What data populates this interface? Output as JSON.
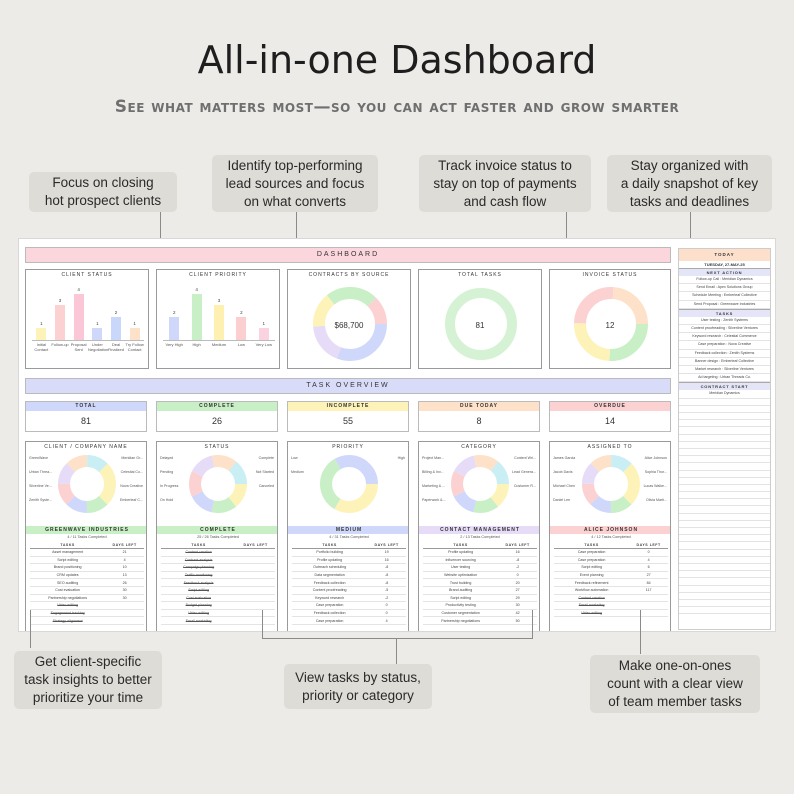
{
  "header": {
    "title": "All-in-one Dashboard",
    "subtitle": "See what matters most—so you can act faster and grow smarter"
  },
  "callouts": {
    "top1": "Focus on closing\nhot prospect clients",
    "top2": "Identify top-performing\nlead sources and focus\non what converts",
    "top3": "Track invoice status to\nstay on top of payments\nand cash flow",
    "top4": "Stay organized with\na daily snapshot of key\ntasks and deadlines",
    "bottom1": "Get client-specific\ntask insights to better\nprioritize your time",
    "bottom2": "View tasks by status,\npriority or category",
    "bottom3": "Make one-on-ones\ncount with a clear view\nof team member tasks"
  },
  "dashboard": {
    "banner": "DASHBOARD",
    "task_overview_banner": "TASK OVERVIEW",
    "client_status": {
      "title": "CLIENT STATUS",
      "bars": [
        {
          "label": "Initial Contact",
          "value": 1,
          "color": "#fdf3b9"
        },
        {
          "label": "Follow-up",
          "value": 3,
          "color": "#fbd1d1"
        },
        {
          "label": "Proposal Sent",
          "value": 4,
          "color": "#fbc6d6"
        },
        {
          "label": "Under Negotiation",
          "value": 1,
          "color": "#cfd8fa"
        },
        {
          "label": "Deal Finalized",
          "value": 2,
          "color": "#c9d7fb"
        },
        {
          "label": "Try Follow Contact",
          "value": 1,
          "color": "#fde1c8"
        }
      ]
    },
    "client_priority": {
      "title": "CLIENT PRIORITY",
      "bars": [
        {
          "label": "Very High",
          "value": 2,
          "color": "#cfd8fa"
        },
        {
          "label": "High",
          "value": 4,
          "color": "#c8efc5"
        },
        {
          "label": "Medium",
          "value": 3,
          "color": "#fdf0b0"
        },
        {
          "label": "Low",
          "value": 2,
          "color": "#fbcfcf"
        },
        {
          "label": "Very Low",
          "value": 1,
          "color": "#fbd3e0"
        }
      ]
    },
    "contracts": {
      "title": "CONTRACTS BY SOURCE",
      "center": "$68,700"
    },
    "total_tasks": {
      "title": "TOTAL TASKS",
      "center": "81"
    },
    "invoice": {
      "title": "INVOICE STATUS",
      "center": "12"
    },
    "kpis": [
      {
        "label": "TOTAL",
        "value": "81",
        "color": "#cfd8fa"
      },
      {
        "label": "COMPLETE",
        "value": "26",
        "color": "#c8efc5"
      },
      {
        "label": "INCOMPLETE",
        "value": "55",
        "color": "#fdf3b9"
      },
      {
        "label": "DUE TODAY",
        "value": "8",
        "color": "#fde1c8"
      },
      {
        "label": "OVERDUE",
        "value": "14",
        "color": "#fbd1d1"
      }
    ],
    "breakdowns": [
      {
        "title": "CLIENT / COMPANY NAME",
        "labels_left": [
          "GreenWave",
          "Urban Threa...",
          "Silverline Ve...",
          "Zenith Syste..."
        ],
        "labels_right": [
          "Meridian Gr...",
          "Celestial Co...",
          "Nova Creative",
          "Emberleaf C..."
        ],
        "selection": "GREENWAVE INDUSTRIES",
        "sel_color": "#c8efc5",
        "sub": "4 / 11 Tasks Completed",
        "col1": "TASKS",
        "col2": "DAYS LEFT",
        "rows": [
          {
            "t": "Asset management",
            "d": "21",
            "done": false
          },
          {
            "t": "Script editing",
            "d": "4",
            "done": false
          },
          {
            "t": "Brand positioning",
            "d": "10",
            "done": false
          },
          {
            "t": "CRM updates",
            "d": "13",
            "done": false
          },
          {
            "t": "SEO auditing",
            "d": "26",
            "done": false
          },
          {
            "t": "Cost evaluation",
            "d": "30",
            "done": false
          },
          {
            "t": "Partnership negotiations",
            "d": "30",
            "done": false
          },
          {
            "t": "Video editing",
            "d": "",
            "done": true
          },
          {
            "t": "Engagement tracking",
            "d": "",
            "done": true
          },
          {
            "t": "Strategy alignment",
            "d": "",
            "done": true
          }
        ]
      },
      {
        "title": "STATUS",
        "labels_left": [
          "Delayed",
          "Pending",
          "In Progress",
          "On Hold"
        ],
        "labels_right": [
          "Complete",
          "Not Started",
          "Canceled"
        ],
        "selection": "COMPLETE",
        "sel_color": "#c8efc5",
        "sub": "25 / 26 Tasks Completed",
        "col1": "TASKS",
        "col2": "DAYS LEFT",
        "rows": [
          {
            "t": "Content creation",
            "d": "",
            "done": true
          },
          {
            "t": "Contract analysis",
            "d": "",
            "done": true
          },
          {
            "t": "Campaign planning",
            "d": "",
            "done": true
          },
          {
            "t": "Traffic monitoring",
            "d": "",
            "done": true
          },
          {
            "t": "Feedback analysis",
            "d": "",
            "done": true
          },
          {
            "t": "Script editing",
            "d": "",
            "done": true
          },
          {
            "t": "Cost evaluation",
            "d": "",
            "done": true
          },
          {
            "t": "Budget planning",
            "d": "",
            "done": true
          },
          {
            "t": "Video editing",
            "d": "",
            "done": true
          },
          {
            "t": "Email marketing",
            "d": "",
            "done": true
          }
        ]
      },
      {
        "title": "PRIORITY",
        "labels_left": [
          "Low",
          "Medium"
        ],
        "labels_right": [
          "High"
        ],
        "selection": "MEDIUM",
        "sel_color": "#cfd8fa",
        "sub": "4 / 31 Tasks Completed",
        "col1": "TASKS",
        "col2": "DAYS LEFT",
        "rows": [
          {
            "t": "Portfolio building",
            "d": "19",
            "done": false
          },
          {
            "t": "Profile updating",
            "d": "16",
            "done": false
          },
          {
            "t": "Outreach scheduling",
            "d": "-8",
            "done": false
          },
          {
            "t": "Data segmentation",
            "d": "-8",
            "done": false
          },
          {
            "t": "Feedback collection",
            "d": "-8",
            "done": false
          },
          {
            "t": "Content proofreading",
            "d": "-5",
            "done": false
          },
          {
            "t": "Keyword research",
            "d": "-2",
            "done": false
          },
          {
            "t": "Case preparation",
            "d": "0",
            "done": false
          },
          {
            "t": "Feedback collection",
            "d": "0",
            "done": false
          },
          {
            "t": "Case preparation",
            "d": "4",
            "done": false
          }
        ]
      },
      {
        "title": "CATEGORY",
        "labels_left": [
          "Project Man...",
          "Billing & Inv...",
          "Marketing & ...",
          "Paperwork &..."
        ],
        "labels_right": [
          "Content Wri...",
          "Lead Genera...",
          "Customer R..."
        ],
        "selection": "CONTACT MANAGEMENT",
        "sel_color": "#e6dcf7",
        "sub": "2 / 13 Tasks Completed",
        "col1": "TASKS",
        "col2": "DAYS LEFT",
        "rows": [
          {
            "t": "Profile updating",
            "d": "16",
            "done": false
          },
          {
            "t": "Influencer sourcing",
            "d": "-8",
            "done": false
          },
          {
            "t": "User testing",
            "d": "-2",
            "done": false
          },
          {
            "t": "Website optimization",
            "d": "0",
            "done": false
          },
          {
            "t": "Trust building",
            "d": "20",
            "done": false
          },
          {
            "t": "Brand auditing",
            "d": "27",
            "done": false
          },
          {
            "t": "Script editing",
            "d": "29",
            "done": false
          },
          {
            "t": "Productivity testing",
            "d": "30",
            "done": false
          },
          {
            "t": "Customer segmentation",
            "d": "42",
            "done": false
          },
          {
            "t": "Partnership negotiations",
            "d": "50",
            "done": false
          }
        ]
      },
      {
        "title": "ASSIGNED TO",
        "labels_left": [
          "James Garcia",
          "Jacob Davis",
          "Michael Chen",
          "Daniel Lee"
        ],
        "labels_right": [
          "Alice Johnson",
          "Sophia Thor...",
          "Lucas Walke...",
          "Olivia Marti..."
        ],
        "selection": "ALICE JOHNSON",
        "sel_color": "#fbd1d1",
        "sub": "4 / 12 Tasks Completed",
        "col1": "TASKS",
        "col2": "DAYS LEFT",
        "rows": [
          {
            "t": "Case preparation",
            "d": "0",
            "done": false
          },
          {
            "t": "Case preparation",
            "d": "4",
            "done": false
          },
          {
            "t": "Script editing",
            "d": "6",
            "done": false
          },
          {
            "t": "Event planning",
            "d": "27",
            "done": false
          },
          {
            "t": "Feedback refinement",
            "d": "84",
            "done": false
          },
          {
            "t": "Workflow automation",
            "d": "117",
            "done": false
          },
          {
            "t": "Content creation",
            "d": "",
            "done": true
          },
          {
            "t": "Email marketing",
            "d": "",
            "done": true
          },
          {
            "t": "Video editing",
            "d": "",
            "done": true
          }
        ]
      }
    ]
  },
  "today": {
    "title": "TODAY",
    "date": "TUESDAY, 27-MAY-25",
    "next_action_label": "NEXT ACTION",
    "next_actions": [
      "Follow-up Call : Meridian Dynamics",
      "Send Email : Apex Solutions Group",
      "Schedule Meeting : Emberleaf Collective",
      "Send Proposal : Greenwave Industries"
    ],
    "tasks_label": "TASKS",
    "tasks": [
      "User testing : Zenith Systems",
      "Content proofreading : Silverline Ventures",
      "Keyword research : Celestial Commerce",
      "Case preparation : Nova Creative",
      "Feedback collection : Zenith Systems",
      "Banner design : Emberleaf Collective",
      "Market research : Silverline Ventures",
      "Ad targeting : Urban Threads Co."
    ],
    "contract_label": "CONTRACT START",
    "contracts": [
      "Meridian Dynamics"
    ]
  },
  "colors": {
    "banner_pink": "#fbd6dd",
    "banner_blue": "#d8dcf8",
    "pastels": [
      "#fdf3b9",
      "#c8efc5",
      "#cfd8fa",
      "#fbd1d1",
      "#e6dcf7",
      "#fde1c8",
      "#c9eef4"
    ]
  }
}
